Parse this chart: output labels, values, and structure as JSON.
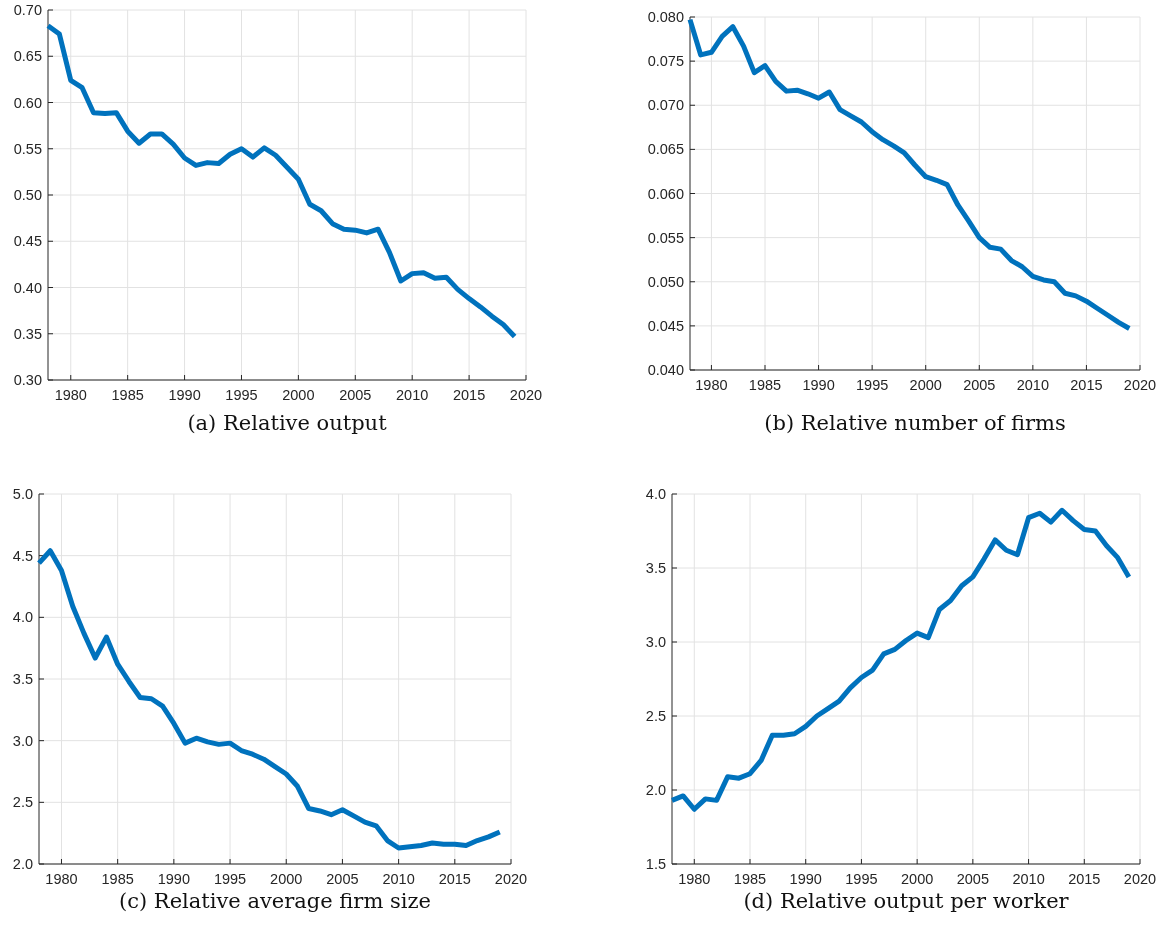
{
  "chart_data": [
    {
      "type": "line",
      "title": "(a) Relative output",
      "x": [
        1978,
        1979,
        1980,
        1981,
        1982,
        1983,
        1984,
        1985,
        1986,
        1987,
        1988,
        1989,
        1990,
        1991,
        1992,
        1993,
        1994,
        1995,
        1996,
        1997,
        1998,
        1999,
        2000,
        2001,
        2002,
        2003,
        2004,
        2005,
        2006,
        2007,
        2008,
        2009,
        2010,
        2011,
        2012,
        2013,
        2014,
        2015,
        2016,
        2017,
        2018,
        2019
      ],
      "series": [
        {
          "color": "#0072bd",
          "values": [
            0.683,
            0.674,
            0.624,
            0.616,
            0.589,
            0.588,
            0.589,
            0.569,
            0.556,
            0.566,
            0.566,
            0.555,
            0.54,
            0.532,
            0.535,
            0.534,
            0.544,
            0.55,
            0.541,
            0.551,
            0.543,
            0.53,
            0.517,
            0.49,
            0.483,
            0.469,
            0.463,
            0.462,
            0.459,
            0.463,
            0.438,
            0.407,
            0.415,
            0.416,
            0.41,
            0.411,
            0.398,
            0.388,
            0.379,
            0.369,
            0.36,
            0.347
          ]
        }
      ],
      "xlim": [
        1978,
        2020
      ],
      "xticks": [
        1980,
        1985,
        1990,
        1995,
        2000,
        2005,
        2010,
        2015,
        2020
      ],
      "ylim": [
        0.3,
        0.7
      ],
      "yticks": [
        {
          "value": 0.3,
          "label": "0.30"
        },
        {
          "value": 0.35,
          "label": "0.35"
        },
        {
          "value": 0.4,
          "label": "0.40"
        },
        {
          "value": 0.45,
          "label": "0.45"
        },
        {
          "value": 0.5,
          "label": "0.50"
        },
        {
          "value": 0.55,
          "label": "0.55"
        },
        {
          "value": 0.6,
          "label": "0.60"
        },
        {
          "value": 0.65,
          "label": "0.65"
        },
        {
          "value": 0.7,
          "label": "0.70"
        }
      ],
      "grid": true
    },
    {
      "type": "line",
      "title": "(b) Relative number of firms",
      "x": [
        1978,
        1979,
        1980,
        1981,
        1982,
        1983,
        1984,
        1985,
        1986,
        1987,
        1988,
        1989,
        1990,
        1991,
        1992,
        1993,
        1994,
        1995,
        1996,
        1997,
        1998,
        1999,
        2000,
        2001,
        2002,
        2003,
        2004,
        2005,
        2006,
        2007,
        2008,
        2009,
        2010,
        2011,
        2012,
        2013,
        2014,
        2015,
        2016,
        2017,
        2018,
        2019
      ],
      "series": [
        {
          "color": "#0072bd",
          "values": [
            0.0797,
            0.0757,
            0.076,
            0.0778,
            0.0789,
            0.0767,
            0.0737,
            0.0745,
            0.0727,
            0.0716,
            0.0717,
            0.0713,
            0.0708,
            0.0715,
            0.0695,
            0.0688,
            0.0681,
            0.067,
            0.0661,
            0.0654,
            0.0646,
            0.0632,
            0.0619,
            0.0615,
            0.061,
            0.0587,
            0.0569,
            0.055,
            0.0539,
            0.0537,
            0.0524,
            0.0517,
            0.0506,
            0.0502,
            0.05,
            0.0487,
            0.0484,
            0.0478,
            0.047,
            0.0462,
            0.0454,
            0.0447
          ]
        }
      ],
      "xlim": [
        1978,
        2020
      ],
      "xticks": [
        1980,
        1985,
        1990,
        1995,
        2000,
        2005,
        2010,
        2015,
        2020
      ],
      "ylim": [
        0.04,
        0.08
      ],
      "yticks": [
        {
          "value": 0.04,
          "label": "0.040"
        },
        {
          "value": 0.045,
          "label": "0.045"
        },
        {
          "value": 0.05,
          "label": "0.050"
        },
        {
          "value": 0.055,
          "label": "0.055"
        },
        {
          "value": 0.06,
          "label": "0.060"
        },
        {
          "value": 0.065,
          "label": "0.065"
        },
        {
          "value": 0.07,
          "label": "0.070"
        },
        {
          "value": 0.075,
          "label": "0.075"
        },
        {
          "value": 0.08,
          "label": "0.080"
        }
      ],
      "grid": true
    },
    {
      "type": "line",
      "title": "(c) Relative average firm size",
      "x": [
        1978,
        1979,
        1980,
        1981,
        1982,
        1983,
        1984,
        1985,
        1986,
        1987,
        1988,
        1989,
        1990,
        1991,
        1992,
        1993,
        1994,
        1995,
        1996,
        1997,
        1998,
        1999,
        2000,
        2001,
        2002,
        2003,
        2004,
        2005,
        2006,
        2007,
        2008,
        2009,
        2010,
        2011,
        2012,
        2013,
        2014,
        2015,
        2016,
        2017,
        2018,
        2019
      ],
      "series": [
        {
          "color": "#0072bd",
          "values": [
            4.44,
            4.54,
            4.38,
            4.09,
            3.87,
            3.67,
            3.84,
            3.62,
            3.48,
            3.35,
            3.34,
            3.28,
            3.14,
            2.98,
            3.02,
            2.99,
            2.97,
            2.98,
            2.92,
            2.89,
            2.85,
            2.79,
            2.73,
            2.63,
            2.45,
            2.43,
            2.4,
            2.44,
            2.39,
            2.34,
            2.31,
            2.19,
            2.13,
            2.14,
            2.15,
            2.17,
            2.16,
            2.16,
            2.15,
            2.19,
            2.22,
            2.26
          ]
        }
      ],
      "xlim": [
        1978,
        2020
      ],
      "xticks": [
        1980,
        1985,
        1990,
        1995,
        2000,
        2005,
        2010,
        2015,
        2020
      ],
      "ylim": [
        2,
        5
      ],
      "yticks": [
        {
          "value": 2,
          "label": "2.0"
        },
        {
          "value": 2.5,
          "label": "2.5"
        },
        {
          "value": 3,
          "label": "3.0"
        },
        {
          "value": 3.5,
          "label": "3.5"
        },
        {
          "value": 4,
          "label": "4.0"
        },
        {
          "value": 4.5,
          "label": "4.5"
        },
        {
          "value": 5,
          "label": "5.0"
        }
      ],
      "grid": true
    },
    {
      "type": "line",
      "title": "(d) Relative output per worker",
      "x": [
        1978,
        1979,
        1980,
        1981,
        1982,
        1983,
        1984,
        1985,
        1986,
        1987,
        1988,
        1989,
        1990,
        1991,
        1992,
        1993,
        1994,
        1995,
        1996,
        1997,
        1998,
        1999,
        2000,
        2001,
        2002,
        2003,
        2004,
        2005,
        2006,
        2007,
        2008,
        2009,
        2010,
        2011,
        2012,
        2013,
        2014,
        2015,
        2016,
        2017,
        2018,
        2019
      ],
      "series": [
        {
          "color": "#0072bd",
          "values": [
            1.93,
            1.96,
            1.87,
            1.94,
            1.93,
            2.09,
            2.08,
            2.11,
            2.2,
            2.37,
            2.37,
            2.38,
            2.43,
            2.5,
            2.55,
            2.6,
            2.69,
            2.76,
            2.81,
            2.92,
            2.95,
            3.01,
            3.06,
            3.03,
            3.22,
            3.28,
            3.38,
            3.44,
            3.56,
            3.69,
            3.62,
            3.59,
            3.84,
            3.87,
            3.81,
            3.89,
            3.82,
            3.76,
            3.75,
            3.65,
            3.57,
            3.44
          ]
        }
      ],
      "xlim": [
        1978,
        2020
      ],
      "xticks": [
        1980,
        1985,
        1990,
        1995,
        2000,
        2005,
        2010,
        2015,
        2020
      ],
      "ylim": [
        1.5,
        4
      ],
      "yticks": [
        {
          "value": 1.5,
          "label": "1.5"
        },
        {
          "value": 2,
          "label": "2.0"
        },
        {
          "value": 2.5,
          "label": "2.5"
        },
        {
          "value": 3,
          "label": "3.0"
        },
        {
          "value": 3.5,
          "label": "3.5"
        },
        {
          "value": 4,
          "label": "4.0"
        }
      ],
      "grid": true
    }
  ]
}
